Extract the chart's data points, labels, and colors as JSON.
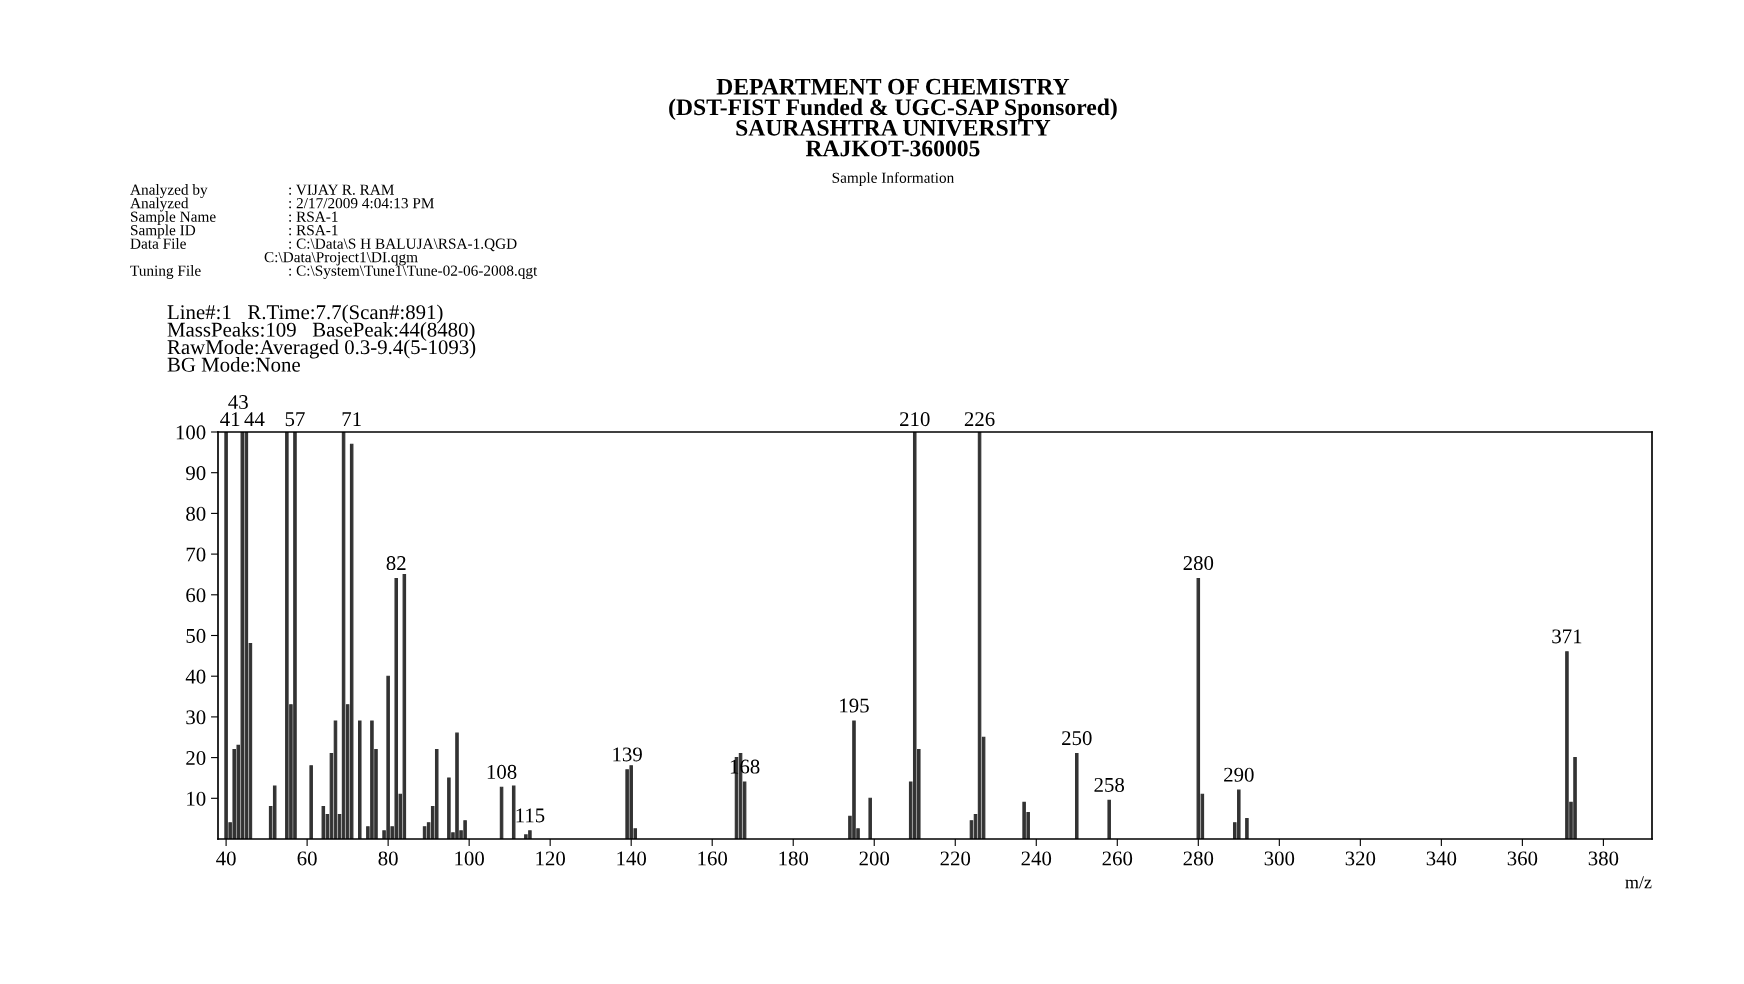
{
  "chart_data": {
    "type": "bar",
    "title": "DEPARTMENT OF CHEMISTRY\n(DST-FIST Funded & UGC-SAP Sponsored)\nSAURASHTRA UNIVERSITY\nRAJKOT-360005",
    "subtitle": "Sample Information",
    "xlabel": "m/z",
    "x": [
      40,
      41,
      42,
      43,
      44,
      45,
      46,
      51,
      52,
      55,
      56,
      57,
      61,
      64,
      65,
      66,
      67,
      68,
      69,
      70,
      71,
      73,
      75,
      76,
      77,
      79,
      80,
      81,
      82,
      83,
      84,
      89,
      90,
      91,
      92,
      95,
      96,
      97,
      98,
      99,
      108,
      111,
      114,
      115,
      139,
      140,
      141,
      166,
      167,
      168,
      194,
      195,
      196,
      199,
      209,
      210,
      211,
      224,
      225,
      226,
      227,
      237,
      238,
      250,
      258,
      280,
      281,
      289,
      290,
      292,
      371,
      372,
      373
    ],
    "values": [
      100,
      4,
      22,
      23,
      100,
      100,
      48,
      8,
      13,
      100,
      33,
      100,
      18,
      8,
      6,
      21,
      29,
      6,
      100,
      33,
      97,
      29,
      3,
      29,
      22,
      2,
      40,
      3,
      64,
      11,
      65,
      3,
      4,
      8,
      22,
      15,
      1.5,
      26,
      2,
      4.5,
      12.7,
      13,
      1,
      2,
      17,
      18,
      2.5,
      20,
      21,
      14,
      5.6,
      29,
      2.5,
      10,
      14,
      100,
      22,
      4.5,
      6,
      100,
      25,
      9,
      6.5,
      21,
      9.5,
      64,
      11,
      4,
      12,
      5,
      46,
      9,
      20
    ],
    "color": "#333333",
    "xlim": [
      38,
      392
    ],
    "ylim": [
      0,
      100
    ],
    "xticks": [
      40,
      60,
      80,
      100,
      120,
      140,
      160,
      180,
      200,
      220,
      240,
      260,
      280,
      300,
      320,
      340,
      360,
      380
    ],
    "yticks": [
      10,
      20,
      30,
      40,
      50,
      60,
      70,
      80,
      90,
      100
    ],
    "grid": false,
    "annotations": [
      "Analyzed by",
      "Analyzed",
      "Sample Name",
      "Sample ID",
      "Data File",
      "Tuning File",
      ": VIJAY R. RAM",
      ": 2/17/2009 4:04:13 PM",
      ": RSA-1",
      ": RSA-1",
      ": C:\\Data\\S H BALUJA\\RSA-1.QGD",
      "C:\\Data\\Project1\\DI.qgm",
      ": C:\\System\\Tune1\\Tune-02-06-2008.qgt",
      "Line#:1   R.Time:7.7(Scan#:891)",
      "MassPeaks:109   BasePeak:44(8480)",
      "RawMode:Averaged 0.3-9.4(5-1093)",
      "BG Mode:None",
      {
        "text": "41",
        "x": 41,
        "y": 100
      },
      {
        "text": "43",
        "x": 43,
        "y": 100
      },
      {
        "text": "44",
        "x": 44,
        "y": 100
      },
      {
        "text": "57",
        "x": 57,
        "y": 100
      },
      {
        "text": "71",
        "x": 71,
        "y": 97
      },
      {
        "text": "82",
        "x": 82,
        "y": 64
      },
      {
        "text": "108",
        "x": 108,
        "y": 12.7
      },
      {
        "text": "115",
        "x": 115,
        "y": 2
      },
      {
        "text": "139",
        "x": 139,
        "y": 17
      },
      {
        "text": "168",
        "x": 168,
        "y": 14
      },
      {
        "text": "195",
        "x": 195,
        "y": 29
      },
      {
        "text": "210",
        "x": 210,
        "y": 100
      },
      {
        "text": "226",
        "x": 226,
        "y": 100
      },
      {
        "text": "250",
        "x": 250,
        "y": 21
      },
      {
        "text": "258",
        "x": 258,
        "y": 9.5
      },
      {
        "text": "280",
        "x": 280,
        "y": 64
      },
      {
        "text": "290",
        "x": 290,
        "y": 12
      },
      {
        "text": "371",
        "x": 371,
        "y": 46
      }
    ]
  }
}
